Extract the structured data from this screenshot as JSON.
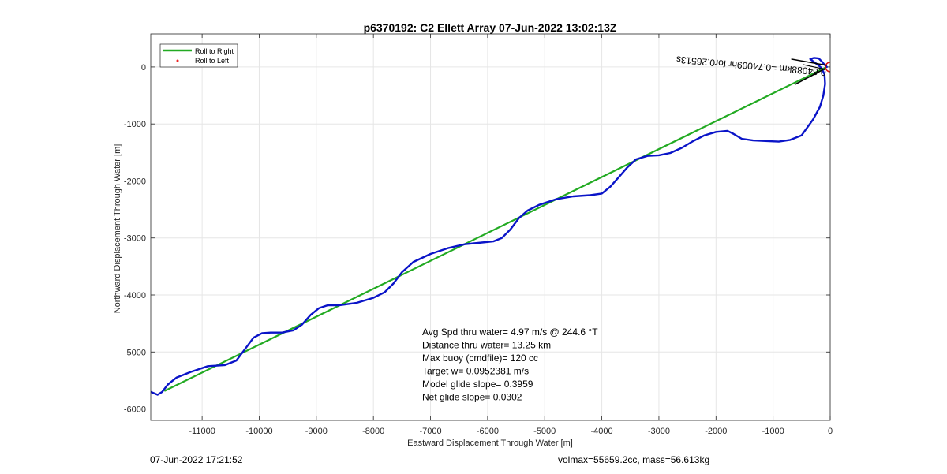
{
  "chart_data": {
    "type": "line",
    "title": "p6370192: C2 Ellett Array 07-Jun-2022 13:02:13Z",
    "xlabel": "Eastward Displacement Through Water [m]",
    "ylabel": "Northward Displacement Through Water [m]",
    "xlim": [
      -11900,
      0
    ],
    "ylim": [
      -6200,
      580
    ],
    "xticks": [
      -11000,
      -10000,
      -9000,
      -8000,
      -7000,
      -6000,
      -5000,
      -4000,
      -3000,
      -2000,
      -1000,
      0
    ],
    "yticks": [
      -6000,
      -5000,
      -4000,
      -3000,
      -2000,
      -1000,
      0
    ],
    "grid": true,
    "legend_position": "top-left",
    "legend": [
      {
        "label": "Roll to Right",
        "color": "#22aa22"
      },
      {
        "label": "Roll to Left",
        "color": "#ee2222"
      }
    ],
    "series": [
      {
        "name": "Roll to Right",
        "style": "line",
        "color": "#22aa22",
        "x": [
          -11650,
          -60
        ],
        "y": [
          -5680,
          0
        ]
      },
      {
        "style": "line",
        "color": "#0a14c8",
        "x": [
          -11900,
          -11780,
          -11700,
          -11600,
          -11450,
          -11200,
          -10900,
          -10600,
          -10400,
          -10250,
          -10100,
          -9950,
          -9800,
          -9600,
          -9400,
          -9250,
          -9100,
          -8950,
          -8800,
          -8600,
          -8300,
          -8000,
          -7800,
          -7650,
          -7500,
          -7300,
          -7000,
          -6700,
          -6400,
          -6100,
          -5900,
          -5750,
          -5600,
          -5450,
          -5300,
          -5100,
          -4800,
          -4500,
          -4200,
          -4000,
          -3850,
          -3700,
          -3550,
          -3400,
          -3200,
          -3000,
          -2800,
          -2600,
          -2400,
          -2200,
          -2000,
          -1800,
          -1700,
          -1550,
          -1350,
          -1100,
          -900,
          -700,
          -500,
          -300,
          -180,
          -120,
          -90,
          -100,
          -150,
          -220,
          -300,
          -350,
          -280,
          -200,
          -150,
          -100,
          -60
        ],
        "y": [
          -5700,
          -5750,
          -5700,
          -5570,
          -5450,
          -5350,
          -5250,
          -5230,
          -5150,
          -4950,
          -4750,
          -4670,
          -4660,
          -4660,
          -4620,
          -4520,
          -4350,
          -4230,
          -4180,
          -4180,
          -4140,
          -4050,
          -3950,
          -3800,
          -3600,
          -3420,
          -3280,
          -3180,
          -3110,
          -3080,
          -3060,
          -3000,
          -2850,
          -2650,
          -2520,
          -2420,
          -2320,
          -2270,
          -2250,
          -2220,
          -2100,
          -1930,
          -1760,
          -1620,
          -1560,
          -1550,
          -1510,
          -1420,
          -1300,
          -1200,
          -1140,
          -1120,
          -1170,
          -1260,
          -1290,
          -1300,
          -1310,
          -1280,
          -1200,
          -920,
          -700,
          -500,
          -300,
          -130,
          -20,
          40,
          100,
          140,
          160,
          150,
          100,
          40,
          0
        ]
      }
    ],
    "start_marker": {
      "x": 0,
      "y": 0,
      "color": "#dd1111"
    },
    "rotated_annotation": "0.64088km =0.74009hr for0.26513s",
    "stats": [
      "Avg Spd thru water=  4.97 m/s @ 244.6 °T",
      "Distance thru water= 13.25 km",
      "Max buoy (cmdfile)= 120 cc",
      "Target w= 0.0952381 m/s",
      "Model glide slope= 0.3959",
      "Net glide slope= 0.0302"
    ]
  },
  "footer": {
    "left": "07-Jun-2022 17:21:52",
    "right": "volmax=55659.2cc, mass=56.613kg"
  }
}
